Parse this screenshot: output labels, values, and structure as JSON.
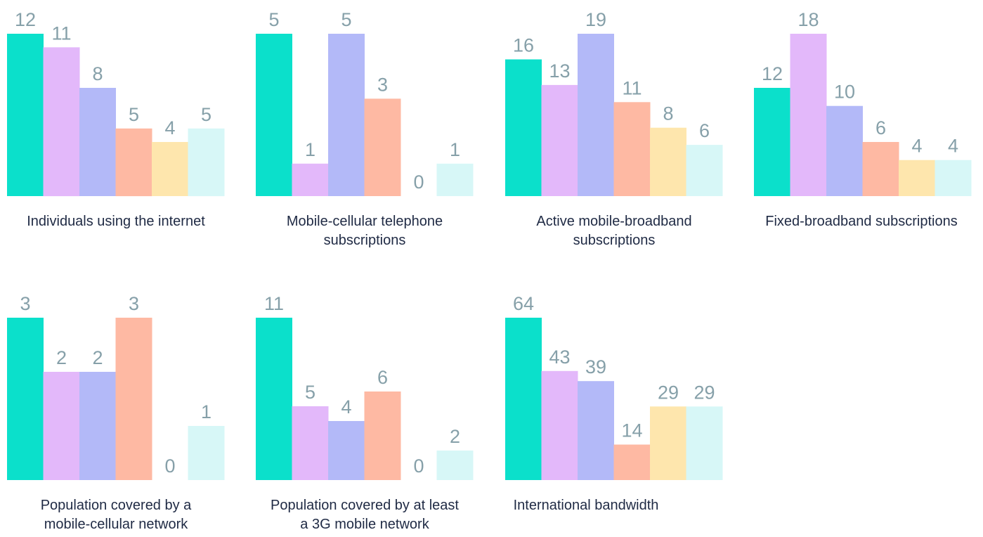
{
  "colors": [
    "#0be0cb",
    "#e3b8fa",
    "#b3b9f8",
    "#feb9a3",
    "#fee6ad",
    "#d7f7f7"
  ],
  "label_color": "#86a0a9",
  "title_color": "#1f2a44",
  "chart_data": [
    {
      "type": "bar",
      "title": "Individuals using the internet",
      "values": [
        12,
        11,
        8,
        5,
        4,
        5
      ],
      "ylim": [
        0,
        12
      ]
    },
    {
      "type": "bar",
      "title": "Mobile-cellular telephone subscriptions",
      "values": [
        5,
        1,
        5,
        3,
        0,
        1
      ],
      "ylim": [
        0,
        5
      ]
    },
    {
      "type": "bar",
      "title": "Active mobile-broadband subscriptions",
      "values": [
        16,
        13,
        19,
        11,
        8,
        6
      ],
      "ylim": [
        0,
        19
      ]
    },
    {
      "type": "bar",
      "title": "Fixed-broadband subscriptions",
      "values": [
        12,
        18,
        10,
        6,
        4,
        4
      ],
      "ylim": [
        0,
        18
      ]
    },
    {
      "type": "bar",
      "title": "Population covered by a mobile-cellular network",
      "values": [
        3,
        2,
        2,
        3,
        0,
        1
      ],
      "ylim": [
        0,
        3
      ]
    },
    {
      "type": "bar",
      "title": "Population covered by at least a 3G mobile network",
      "values": [
        11,
        5,
        4,
        6,
        0,
        2
      ],
      "ylim": [
        0,
        11
      ]
    },
    {
      "type": "bar",
      "title": "International bandwidth",
      "values": [
        64,
        43,
        39,
        14,
        29,
        29
      ],
      "ylim": [
        0,
        64
      ]
    }
  ]
}
